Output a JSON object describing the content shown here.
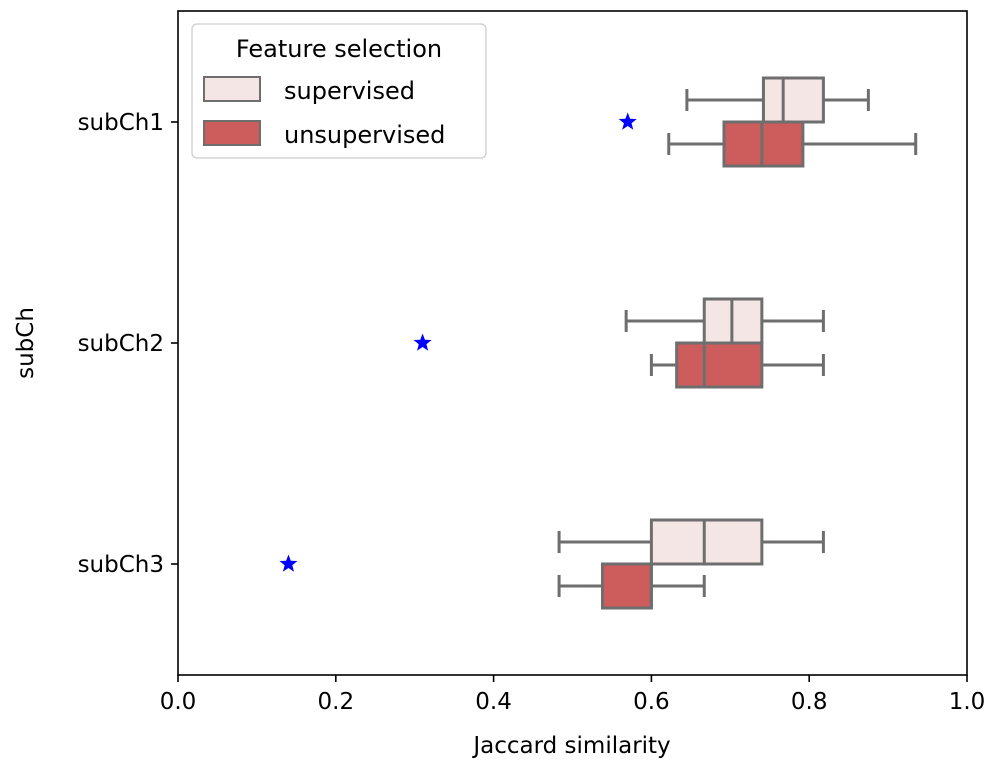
{
  "chart_data": {
    "type": "boxplot",
    "orientation": "horizontal",
    "xlabel": "Jaccard similarity",
    "ylabel": "subCh",
    "xlim": [
      0.0,
      1.0
    ],
    "xticks": [
      "0.0",
      "0.2",
      "0.4",
      "0.6",
      "0.8",
      "1.0"
    ],
    "categories": [
      "subCh1",
      "subCh2",
      "subCh3"
    ],
    "legend": {
      "title": "Feature selection",
      "position": "top-left"
    },
    "series": [
      {
        "name": "supervised",
        "color": "#f5e6e6",
        "boxes": [
          {
            "min": 0.645,
            "q1": 0.742,
            "median": 0.767,
            "q3": 0.818,
            "max": 0.875
          },
          {
            "min": 0.568,
            "q1": 0.667,
            "median": 0.702,
            "q3": 0.74,
            "max": 0.818
          },
          {
            "min": 0.483,
            "q1": 0.6,
            "median": 0.667,
            "q3": 0.74,
            "max": 0.818
          }
        ]
      },
      {
        "name": "unsupervised",
        "color": "#cd5c5c",
        "boxes": [
          {
            "min": 0.622,
            "q1": 0.692,
            "median": 0.74,
            "q3": 0.792,
            "max": 0.935
          },
          {
            "min": 0.6,
            "q1": 0.632,
            "median": 0.667,
            "q3": 0.74,
            "max": 0.818
          },
          {
            "min": 0.483,
            "q1": 0.538,
            "median": 0.6,
            "q3": 0.6,
            "max": 0.667
          }
        ]
      }
    ],
    "stars": {
      "color": "#0000ff",
      "values": [
        0.57,
        0.31,
        0.14
      ]
    },
    "box_edge_color": "#6e6e6e",
    "grid": false
  }
}
